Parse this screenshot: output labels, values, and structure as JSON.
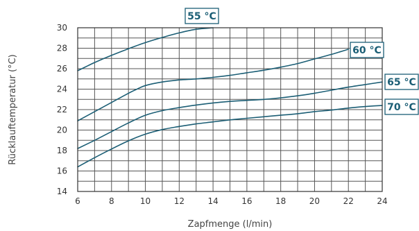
{
  "chart_data": {
    "type": "line",
    "xlabel": "Zapfmenge (l/min)",
    "ylabel": "Rücklauftemperatur (°C)",
    "xlim": [
      6,
      24
    ],
    "ylim": [
      14,
      30
    ],
    "xticks": [
      6,
      8,
      10,
      12,
      14,
      16,
      18,
      20,
      22,
      24
    ],
    "yticks": [
      14,
      16,
      18,
      20,
      22,
      24,
      26,
      28,
      30
    ],
    "grid": true,
    "color": "#1b5e75",
    "series": [
      {
        "name": "55 °C",
        "x": [
          6,
          7,
          8,
          9,
          10,
          11,
          12,
          13,
          14
        ],
        "y": [
          25.8,
          26.6,
          27.3,
          27.95,
          28.55,
          29.05,
          29.5,
          29.85,
          30.0
        ]
      },
      {
        "name": "60 °C",
        "x": [
          6,
          7,
          8,
          9,
          9.5,
          10,
          11,
          12,
          13,
          14,
          15,
          16,
          17,
          18,
          19,
          20,
          21,
          22
        ],
        "y": [
          20.9,
          21.8,
          22.7,
          23.6,
          24.0,
          24.35,
          24.7,
          24.9,
          25.0,
          25.15,
          25.35,
          25.6,
          25.85,
          26.15,
          26.5,
          26.95,
          27.4,
          27.9
        ]
      },
      {
        "name": "65 °C",
        "x": [
          6,
          7,
          8,
          9,
          10,
          11,
          12,
          13,
          14,
          15,
          16,
          17,
          18,
          19,
          20,
          21,
          22,
          23,
          24
        ],
        "y": [
          18.2,
          19.0,
          19.85,
          20.7,
          21.45,
          21.9,
          22.2,
          22.45,
          22.65,
          22.8,
          22.9,
          23.0,
          23.15,
          23.35,
          23.6,
          23.9,
          24.2,
          24.45,
          24.7
        ]
      },
      {
        "name": "70 °C",
        "x": [
          6,
          7,
          8,
          9,
          10,
          11,
          12,
          13,
          14,
          15,
          16,
          17,
          18,
          19,
          20,
          21,
          22,
          23,
          24
        ],
        "y": [
          16.4,
          17.3,
          18.15,
          18.95,
          19.6,
          20.05,
          20.35,
          20.6,
          20.8,
          21.0,
          21.15,
          21.3,
          21.45,
          21.6,
          21.8,
          21.95,
          22.15,
          22.3,
          22.4
        ]
      }
    ]
  }
}
